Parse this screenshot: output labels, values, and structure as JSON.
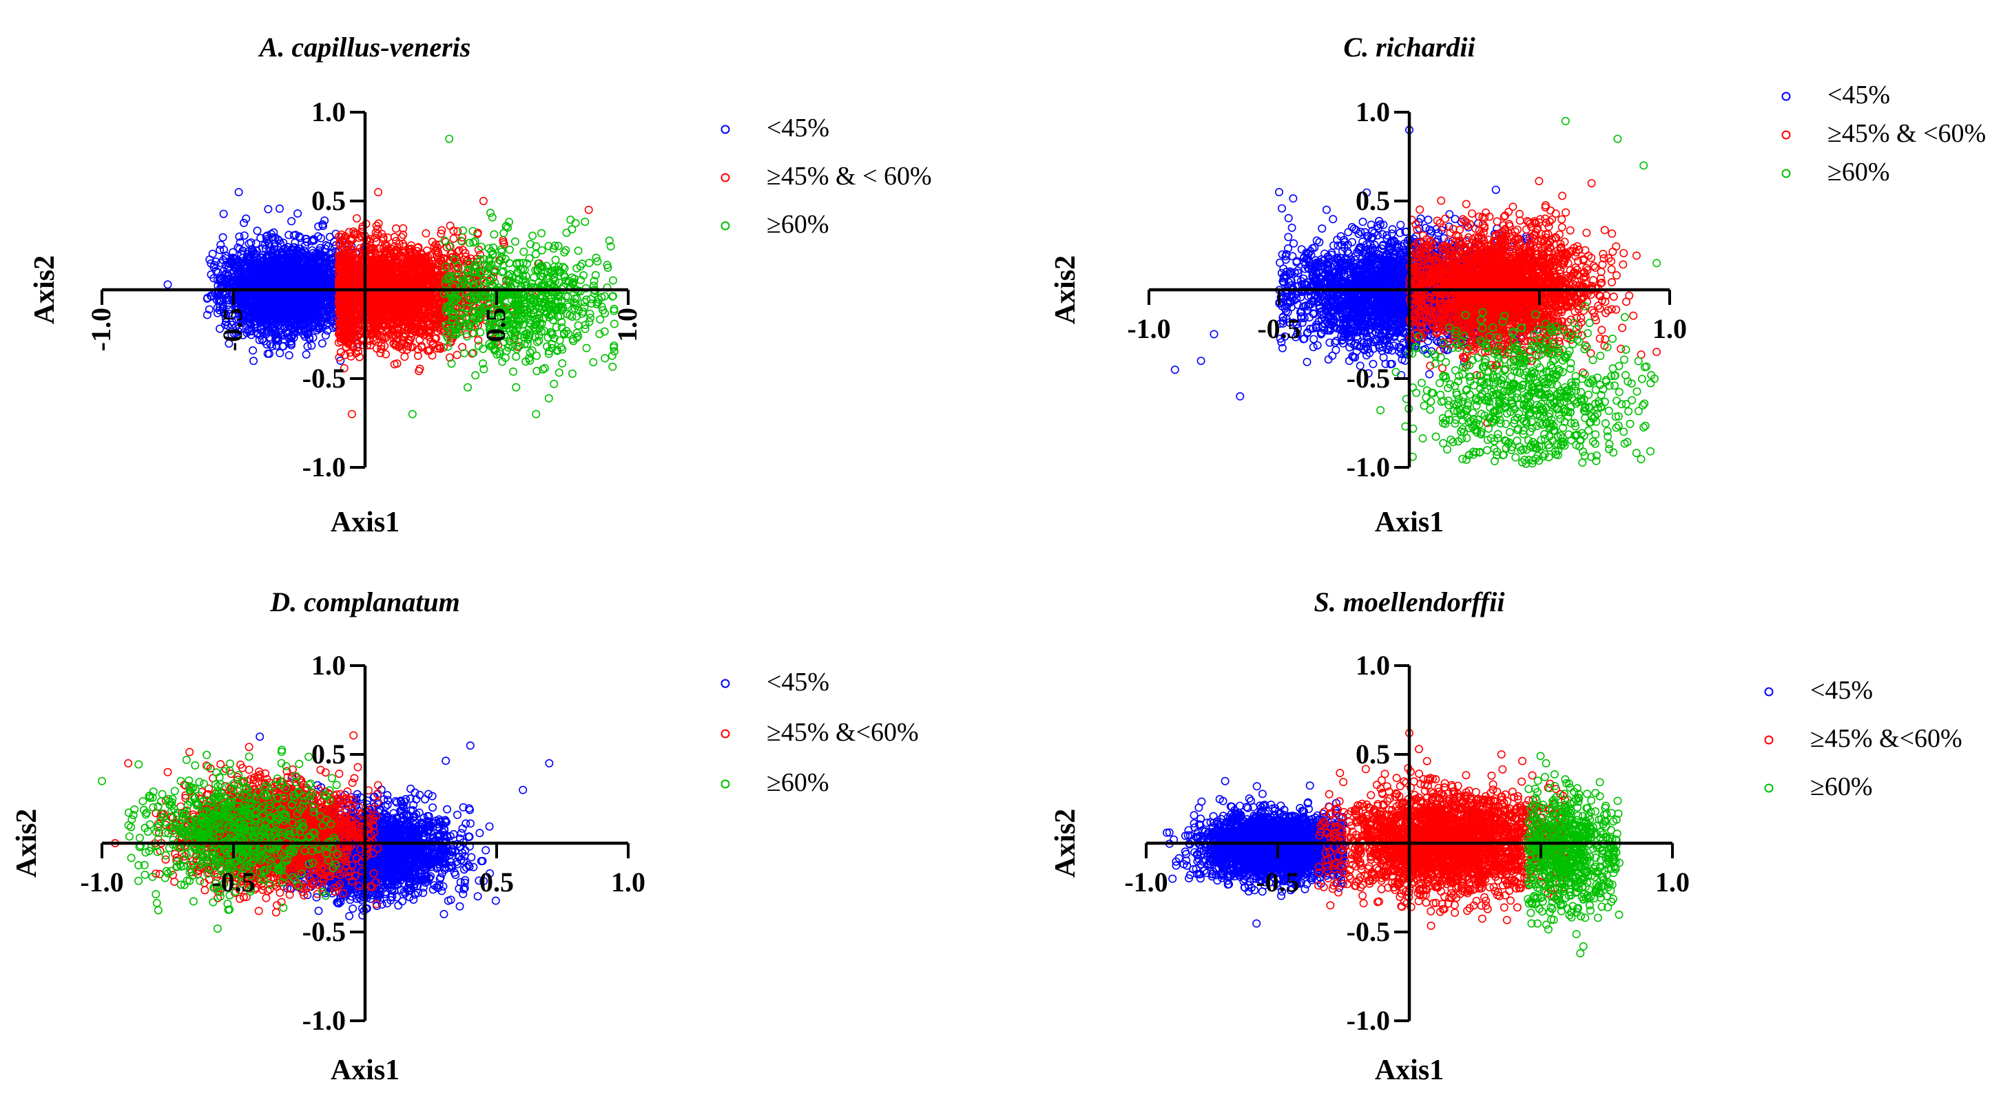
{
  "figure_panels": 4,
  "colors": {
    "low": "#0000ff",
    "mid": "#ff0000",
    "high": "#00c000",
    "axis": "#000000"
  },
  "chart_data": [
    {
      "type": "scatter",
      "title": "A. capillus-veneris",
      "xlabel": "Axis1",
      "ylabel": "Axis2",
      "xlim": [
        -1.0,
        1.0
      ],
      "ylim": [
        -1.0,
        1.0
      ],
      "x_ticks": [
        "-1.0",
        "-0.5",
        "0.5",
        "1.0"
      ],
      "y_ticks": [
        "1.0",
        "0.5",
        "-0.5",
        "-1.0"
      ],
      "x_tick_rotated": true,
      "legend": [
        "<45%",
        "≥45% & < 60%",
        "≥60%"
      ],
      "series": [
        {
          "name": "<45%",
          "color": "#0000ff",
          "center": [
            -0.3,
            0.0
          ],
          "spread": [
            0.12,
            0.12
          ],
          "range_x": [
            -0.6,
            0.15
          ],
          "outliers": [
            [
              -0.75,
              0.03
            ],
            [
              -0.48,
              0.55
            ],
            [
              -0.6,
              -0.05
            ]
          ]
        },
        {
          "name": "≥45% & < 60%",
          "color": "#ff0000",
          "center": [
            0.1,
            -0.02
          ],
          "spread": [
            0.17,
            0.14
          ],
          "range_x": [
            -0.1,
            0.7
          ],
          "outliers": [
            [
              0.05,
              0.55
            ],
            [
              0.85,
              0.45
            ],
            [
              0.45,
              0.5
            ],
            [
              -0.05,
              -0.7
            ]
          ]
        },
        {
          "name": "≥60%",
          "color": "#00c000",
          "center": [
            0.6,
            -0.08
          ],
          "spread": [
            0.16,
            0.17
          ],
          "range_x": [
            0.3,
            0.95
          ],
          "outliers": [
            [
              0.32,
              0.85
            ],
            [
              0.18,
              -0.7
            ],
            [
              0.65,
              -0.7
            ]
          ]
        }
      ]
    },
    {
      "type": "scatter",
      "title": "C. richardii",
      "xlabel": "Axis1",
      "ylabel": "Axis2",
      "xlim": [
        -1.0,
        1.0
      ],
      "ylim": [
        -1.0,
        1.0
      ],
      "x_ticks": [
        "-1.0",
        "-0.5",
        "1.0"
      ],
      "y_ticks": [
        "1.0",
        "0.5",
        "-0.5",
        "-1.0"
      ],
      "x_tick_rotated": false,
      "legend": [
        "<45%",
        "≥45% & <60%",
        "≥60%"
      ],
      "series": [
        {
          "name": "<45%",
          "color": "#0000ff",
          "center": [
            -0.05,
            -0.02
          ],
          "spread": [
            0.2,
            0.15
          ],
          "range_x": [
            -0.5,
            0.5
          ],
          "outliers": [
            [
              -0.75,
              -0.25
            ],
            [
              -0.8,
              -0.4
            ],
            [
              -0.9,
              -0.45
            ],
            [
              0.0,
              0.9
            ],
            [
              -0.65,
              -0.6
            ],
            [
              -0.5,
              0.55
            ]
          ]
        },
        {
          "name": "≥45% & <60%",
          "color": "#ff0000",
          "center": [
            0.35,
            0.0
          ],
          "spread": [
            0.17,
            0.16
          ],
          "range_x": [
            0.0,
            0.9
          ],
          "outliers": [
            [
              0.95,
              -0.35
            ],
            [
              0.7,
              0.6
            ],
            [
              0.3,
              -0.75
            ]
          ]
        },
        {
          "name": "≥60%",
          "color": "#00c000",
          "center": [
            0.45,
            -0.6
          ],
          "spread": [
            0.2,
            0.2
          ],
          "range_x": [
            -0.25,
            0.95
          ],
          "outliers": [
            [
              0.8,
              0.85
            ],
            [
              0.9,
              0.7
            ],
            [
              0.6,
              0.95
            ],
            [
              0.95,
              0.15
            ]
          ]
        }
      ]
    },
    {
      "type": "scatter",
      "title": "D. complanatum",
      "xlabel": "Axis1",
      "ylabel": "Axis2",
      "xlim": [
        -1.0,
        1.0
      ],
      "ylim": [
        -1.0,
        1.0
      ],
      "x_ticks": [
        "-1.0",
        "-0.5",
        "0.5",
        "1.0"
      ],
      "y_ticks": [
        "1.0",
        "0.5",
        "-0.5",
        "-1.0"
      ],
      "x_tick_rotated": false,
      "legend": [
        "<45%",
        "≥45% &<60%",
        "≥60%"
      ],
      "series": [
        {
          "name": "<45%",
          "color": "#0000ff",
          "center": [
            0.02,
            -0.05
          ],
          "spread": [
            0.15,
            0.12
          ],
          "range_x": [
            -0.3,
            0.5
          ],
          "outliers": [
            [
              0.4,
              0.55
            ],
            [
              0.6,
              0.3
            ],
            [
              0.7,
              0.45
            ],
            [
              -0.4,
              0.6
            ]
          ]
        },
        {
          "name": "≥45% &<60%",
          "color": "#ff0000",
          "center": [
            -0.35,
            0.05
          ],
          "spread": [
            0.16,
            0.13
          ],
          "range_x": [
            -0.8,
            0.05
          ],
          "outliers": [
            [
              -0.9,
              0.45
            ],
            [
              -0.75,
              0.4
            ],
            [
              -0.95,
              0.0
            ]
          ]
        },
        {
          "name": "≥60%",
          "color": "#00c000",
          "center": [
            -0.5,
            0.05
          ],
          "spread": [
            0.18,
            0.16
          ],
          "range_x": [
            -0.9,
            -0.1
          ],
          "outliers": [
            [
              -1.0,
              0.35
            ],
            [
              -0.55,
              -0.3
            ]
          ]
        }
      ]
    },
    {
      "type": "scatter",
      "title": "S. moellendorffii",
      "xlabel": "Axis1",
      "ylabel": "Axis2",
      "xlim": [
        -1.0,
        1.0
      ],
      "ylim": [
        -1.0,
        1.0
      ],
      "x_ticks": [
        "-1.0",
        "-0.5",
        "1.0"
      ],
      "y_ticks": [
        "1.0",
        "0.5",
        "-0.5",
        "-1.0"
      ],
      "x_tick_rotated": false,
      "legend": [
        "<45%",
        "≥45% &<60%",
        "≥60%"
      ],
      "series": [
        {
          "name": "<45%",
          "color": "#0000ff",
          "center": [
            -0.5,
            -0.02
          ],
          "spread": [
            0.14,
            0.09
          ],
          "range_x": [
            -0.95,
            -0.25
          ],
          "outliers": [
            [
              -0.9,
              -0.2
            ],
            [
              -0.8,
              0.2
            ],
            [
              -0.7,
              0.35
            ]
          ]
        },
        {
          "name": "≥45% &<60%",
          "color": "#ff0000",
          "center": [
            0.15,
            0.0
          ],
          "spread": [
            0.2,
            0.14
          ],
          "range_x": [
            -0.35,
            0.6
          ],
          "outliers": [
            [
              0.0,
              0.62
            ],
            [
              0.35,
              0.5
            ],
            [
              -0.3,
              -0.35
            ]
          ]
        },
        {
          "name": "≥60%",
          "color": "#00c000",
          "center": [
            0.6,
            -0.05
          ],
          "spread": [
            0.1,
            0.17
          ],
          "range_x": [
            0.45,
            0.8
          ],
          "outliers": [
            [
              0.65,
              -0.62
            ],
            [
              0.52,
              0.45
            ]
          ]
        }
      ]
    }
  ]
}
